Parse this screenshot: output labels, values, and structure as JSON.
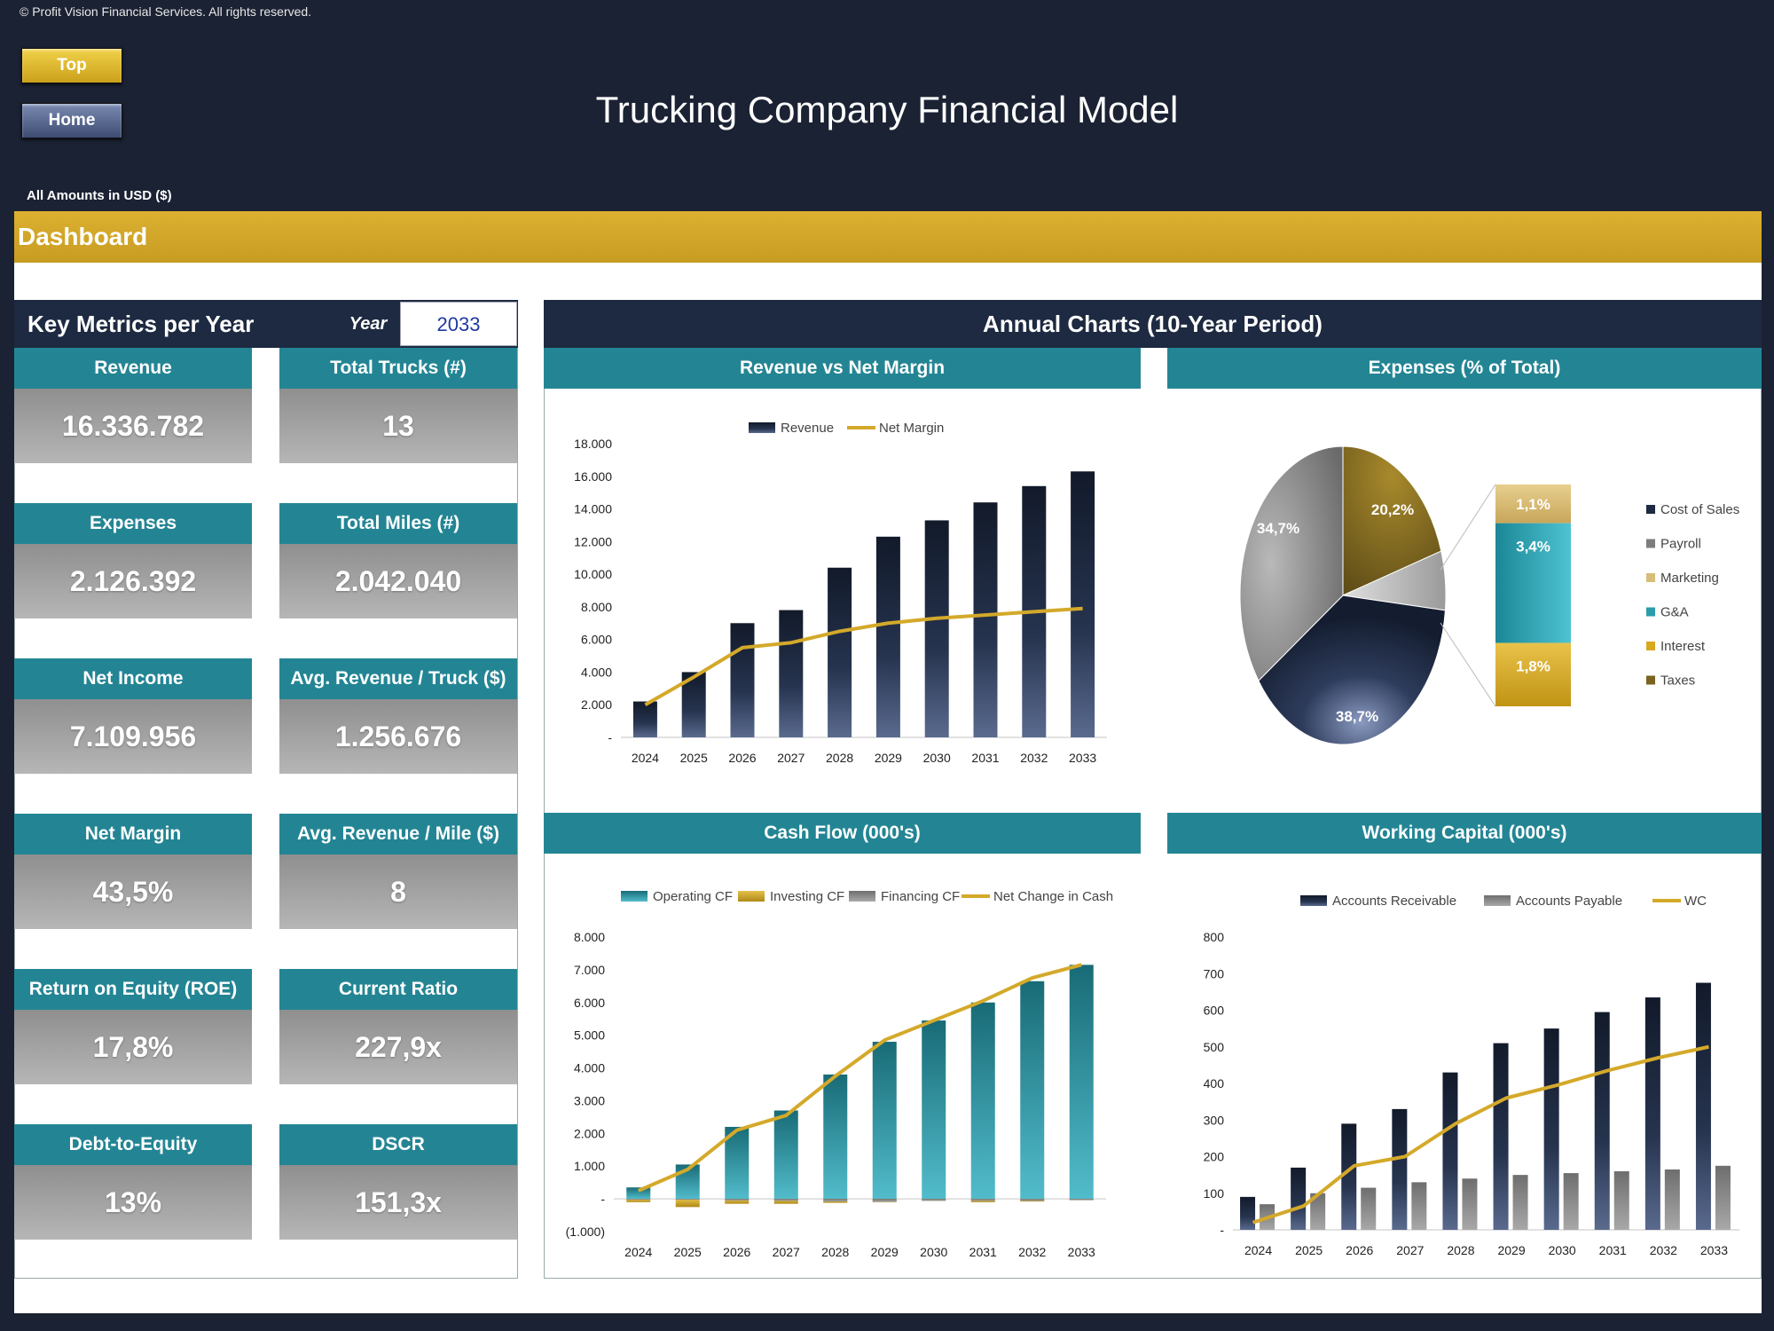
{
  "copyright": "© Profit Vision Financial Services. All rights reserved.",
  "nav": {
    "top": "Top",
    "home": "Home"
  },
  "title": "Trucking Company Financial Model",
  "units": "All Amounts in  USD ($)",
  "section": "Dashboard",
  "key_metrics": {
    "title": "Key Metrics per Year",
    "year_label": "Year",
    "year_value": "2033",
    "cards": [
      {
        "label": "Revenue",
        "value": "16.336.782"
      },
      {
        "label": "Total Trucks (#)",
        "value": "13"
      },
      {
        "label": "Expenses",
        "value": "2.126.392"
      },
      {
        "label": "Total Miles (#)",
        "value": "2.042.040"
      },
      {
        "label": "Net Income",
        "value": "7.109.956"
      },
      {
        "label": "Avg. Revenue / Truck ($)",
        "value": "1.256.676"
      },
      {
        "label": "Net Margin",
        "value": "43,5%"
      },
      {
        "label": "Avg. Revenue / Mile ($)",
        "value": "8"
      },
      {
        "label": "Return on Equity (ROE)",
        "value": "17,8%"
      },
      {
        "label": "Current Ratio",
        "value": "227,9x"
      },
      {
        "label": "Debt-to-Equity",
        "value": "13%"
      },
      {
        "label": "DSCR",
        "value": "151,3x"
      }
    ]
  },
  "annual_title": "Annual Charts (10-Year Period)",
  "colors": {
    "navy": "#1d2a41",
    "teal": "#238594",
    "gold": "#d4a92a",
    "gray": "#8a8a8a"
  },
  "chart_data": [
    {
      "type": "bar",
      "title": "Revenue vs Net Margin",
      "categories": [
        "2024",
        "2025",
        "2026",
        "2027",
        "2028",
        "2029",
        "2030",
        "2031",
        "2032",
        "2033"
      ],
      "ylim": [
        0,
        18000
      ],
      "ytick_labels": [
        "-",
        "2.000",
        "4.000",
        "6.000",
        "8.000",
        "10.000",
        "12.000",
        "14.000",
        "16.000",
        "18.000"
      ],
      "series": [
        {
          "name": "Revenue",
          "type": "bar",
          "values": [
            2200,
            4000,
            7000,
            7800,
            10400,
            12300,
            13300,
            14400,
            15400,
            16300
          ]
        },
        {
          "name": "Net Margin",
          "type": "line",
          "values": [
            2000,
            3700,
            5500,
            5800,
            6500,
            7000,
            7300,
            7500,
            7700,
            7900
          ]
        }
      ]
    },
    {
      "type": "pie",
      "title": "Expenses (% of Total)",
      "legend": [
        "Cost of Sales",
        "Payroll",
        "Marketing",
        "G&A",
        "Interest",
        "Taxes"
      ],
      "slices": [
        {
          "name": "Cost of Sales",
          "value": 38.7,
          "label": "38,7%"
        },
        {
          "name": "Payroll",
          "value": 34.7,
          "label": "34,7%"
        },
        {
          "name": "Taxes",
          "value": 20.2,
          "label": "20,2%"
        },
        {
          "name": "Other",
          "value": 6.4,
          "label": ""
        }
      ],
      "breakdown": [
        {
          "name": "Marketing",
          "value": 1.1,
          "label": "1,1%"
        },
        {
          "name": "G&A",
          "value": 3.4,
          "label": "3,4%"
        },
        {
          "name": "Interest",
          "value": 1.8,
          "label": "1,8%"
        }
      ]
    },
    {
      "type": "bar",
      "title": "Cash Flow (000's)",
      "categories": [
        "2024",
        "2025",
        "2026",
        "2027",
        "2028",
        "2029",
        "2030",
        "2031",
        "2032",
        "2033"
      ],
      "ylim": [
        -1000,
        8000
      ],
      "ytick_labels": [
        "(1.000)",
        "-",
        "1.000",
        "2.000",
        "3.000",
        "4.000",
        "5.000",
        "6.000",
        "7.000",
        "8.000"
      ],
      "series": [
        {
          "name": "Operating CF",
          "type": "bar",
          "values": [
            350,
            1050,
            2200,
            2700,
            3800,
            4800,
            5450,
            6000,
            6650,
            7150
          ]
        },
        {
          "name": "Investing CF",
          "type": "bar",
          "values": [
            -100,
            -250,
            -150,
            -150,
            -120,
            -100,
            -60,
            -100,
            -80,
            -40
          ]
        },
        {
          "name": "Financing CF",
          "type": "bar",
          "values": [
            0,
            0,
            -50,
            -60,
            -80,
            -90,
            -60,
            -60,
            -60,
            -40
          ]
        },
        {
          "name": "Net Change in Cash",
          "type": "line",
          "values": [
            250,
            900,
            2100,
            2550,
            3750,
            4850,
            5450,
            6050,
            6750,
            7150
          ]
        }
      ]
    },
    {
      "type": "bar",
      "title": "Working Capital (000's)",
      "categories": [
        "2024",
        "2025",
        "2026",
        "2027",
        "2028",
        "2029",
        "2030",
        "2031",
        "2032",
        "2033"
      ],
      "ylim": [
        0,
        800
      ],
      "ytick_labels": [
        "-",
        "100",
        "200",
        "300",
        "400",
        "500",
        "600",
        "700",
        "800"
      ],
      "series": [
        {
          "name": "Accounts Receivable",
          "type": "bar",
          "values": [
            90,
            170,
            290,
            330,
            430,
            510,
            550,
            595,
            635,
            675
          ]
        },
        {
          "name": "Accounts Payable",
          "type": "bar",
          "values": [
            70,
            100,
            115,
            130,
            140,
            150,
            155,
            160,
            165,
            175
          ]
        },
        {
          "name": "WC",
          "type": "line",
          "values": [
            20,
            65,
            175,
            200,
            290,
            360,
            395,
            435,
            470,
            500
          ]
        }
      ]
    }
  ]
}
